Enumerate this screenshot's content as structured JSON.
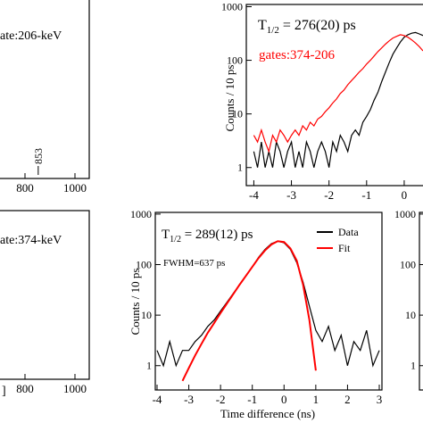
{
  "chart_data": [
    {
      "type": "spectrum",
      "annotation": "ate:206-keV",
      "xlim": [
        700,
        1050
      ],
      "xticks": [
        800,
        1000
      ],
      "peak_labels": [
        853
      ]
    },
    {
      "type": "line",
      "annotation": {
        "symbol": "T",
        "subscript": "1/2",
        "text": " = 276(20) ps"
      },
      "gate_label": "gates:374-206",
      "gate_label_color": "#ff0000",
      "y_label": "Counts / 10 ps",
      "log_y": true,
      "xlim": [
        -4.2,
        0.5
      ],
      "ylim": [
        0.46,
        1100
      ],
      "xticks": [
        -4,
        -3,
        -2,
        -1,
        0
      ],
      "yticks": [
        1,
        10,
        100,
        1000
      ],
      "x": [
        -4,
        -3.9,
        -3.8,
        -3.7,
        -3.6,
        -3.5,
        -3.4,
        -3.3,
        -3.2,
        -3.1,
        -3,
        -2.9,
        -2.8,
        -2.7,
        -2.6,
        -2.5,
        -2.4,
        -2.3,
        -2.2,
        -2.1,
        -2,
        -1.9,
        -1.8,
        -1.7,
        -1.6,
        -1.5,
        -1.4,
        -1.3,
        -1.2,
        -1.1,
        -1,
        -0.9,
        -0.8,
        -0.7,
        -0.6,
        -0.5,
        -0.4,
        -0.3,
        -0.2,
        -0.1,
        0,
        0.1,
        0.2,
        0.3,
        0.4,
        0.5
      ],
      "series": [
        {
          "color": "#000000",
          "values": [
            2,
            1,
            3,
            1,
            2,
            1,
            3,
            2,
            1,
            2,
            3,
            1,
            2,
            1,
            3,
            2,
            1,
            2,
            3,
            2,
            1,
            3,
            2,
            4,
            3,
            2,
            4,
            5,
            4,
            7,
            9,
            12,
            18,
            25,
            40,
            60,
            90,
            130,
            170,
            220,
            270,
            300,
            320,
            330,
            310,
            290
          ]
        },
        {
          "color": "#ff0000",
          "values": [
            4,
            3,
            5,
            3,
            2,
            4,
            3,
            5,
            4,
            3,
            4,
            5,
            4,
            6,
            5,
            7,
            6,
            8,
            9,
            11,
            13,
            16,
            19,
            24,
            28,
            35,
            42,
            50,
            60,
            70,
            85,
            100,
            120,
            145,
            170,
            200,
            230,
            260,
            280,
            300,
            290,
            270,
            240,
            210,
            180,
            150
          ]
        }
      ]
    },
    {
      "type": "spectrum",
      "annotation": "ate:374-keV",
      "axis_label_fragment": "]",
      "xlim": [
        700,
        1050
      ],
      "xticks": [
        800,
        1000
      ]
    },
    {
      "type": "line",
      "annotation": {
        "symbol": "T",
        "subscript": "1/2",
        "text": " = 289(12) ps"
      },
      "fwhm_label": "FWHM=637 ps",
      "x_label": "Time difference (ns)",
      "y_label": "Counts / 10 ps",
      "log_y": true,
      "legend": "upper right",
      "xlim": [
        -4,
        3
      ],
      "ylim": [
        0.33,
        1080
      ],
      "xticks": [
        -4,
        -3,
        -2,
        -1,
        0,
        1,
        2,
        3
      ],
      "yticks": [
        1,
        10,
        100,
        1000
      ],
      "x": [
        -4,
        -3.8,
        -3.6,
        -3.4,
        -3.2,
        -3,
        -2.8,
        -2.6,
        -2.4,
        -2.2,
        -2,
        -1.8,
        -1.6,
        -1.4,
        -1.2,
        -1,
        -0.8,
        -0.6,
        -0.4,
        -0.2,
        0,
        0.2,
        0.4,
        0.6,
        0.8,
        1,
        1.2,
        1.4,
        1.6,
        1.8,
        2,
        2.2,
        2.4,
        2.6,
        2.8,
        3
      ],
      "series": [
        {
          "name": "Data",
          "color": "#000000",
          "values": [
            2,
            1,
            3,
            1,
            2,
            2,
            3,
            4,
            6,
            8,
            12,
            18,
            27,
            40,
            60,
            90,
            140,
            200,
            260,
            290,
            270,
            200,
            110,
            45,
            15,
            5,
            3,
            6,
            2,
            4,
            1,
            3,
            2,
            5,
            1,
            2
          ]
        },
        {
          "name": "Fit",
          "color": "#ff0000",
          "values": [
            null,
            null,
            null,
            null,
            0.5,
            0.9,
            1.6,
            2.7,
            4.5,
            7,
            11,
            17,
            26,
            40,
            60,
            90,
            135,
            190,
            250,
            290,
            280,
            210,
            120,
            40,
            8,
            0.8,
            null,
            null,
            null,
            null,
            null,
            null,
            null,
            null,
            null,
            null
          ]
        }
      ]
    },
    {
      "type": "axis",
      "log_y": true,
      "ylim": [
        0.33,
        1080
      ],
      "yticks": [
        1,
        10,
        100,
        1000
      ]
    }
  ]
}
